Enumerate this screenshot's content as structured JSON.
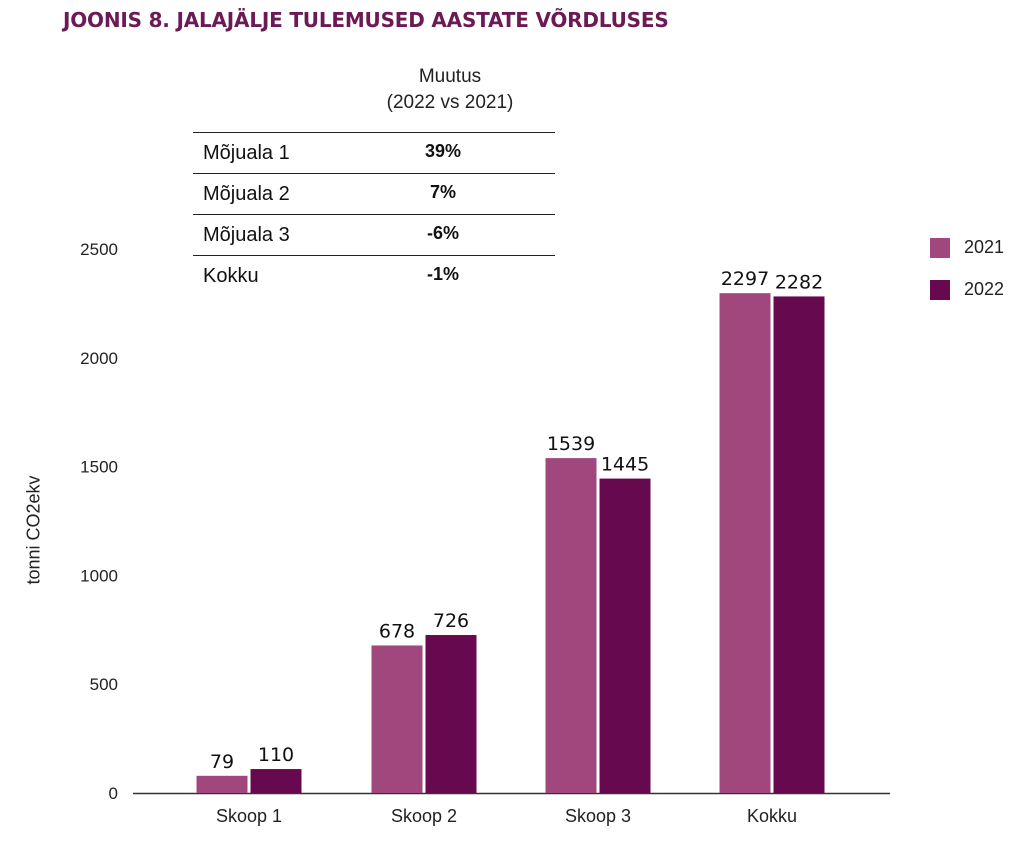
{
  "title": "JOONIS 8. JALAJÄLJE TULEMUSED AASTATE VÕRDLUSES",
  "table": {
    "header_line1": "Muutus",
    "header_line2": "(2022 vs 2021)",
    "rows": [
      {
        "label": "Mõjuala 1",
        "value": "39%"
      },
      {
        "label": "Mõjuala 2",
        "value": "7%"
      },
      {
        "label": "Mõjuala 3",
        "value": "-6%"
      },
      {
        "label": "Kokku",
        "value": "-1%"
      }
    ]
  },
  "chart_data": {
    "type": "bar",
    "categories": [
      "Skoop 1",
      "Skoop 2",
      "Skoop 3",
      "Kokku"
    ],
    "series": [
      {
        "name": "2021",
        "color": "#a0477e",
        "values": [
          79,
          678,
          1539,
          2297
        ]
      },
      {
        "name": "2022",
        "color": "#66094f",
        "values": [
          110,
          726,
          1445,
          2282
        ]
      }
    ],
    "ylabel": "tonni CO2ekv",
    "ylim": [
      0,
      2500
    ],
    "yticks": [
      0,
      500,
      1000,
      1500,
      2000,
      2500
    ],
    "legend_position": "top-right",
    "grid": false
  }
}
